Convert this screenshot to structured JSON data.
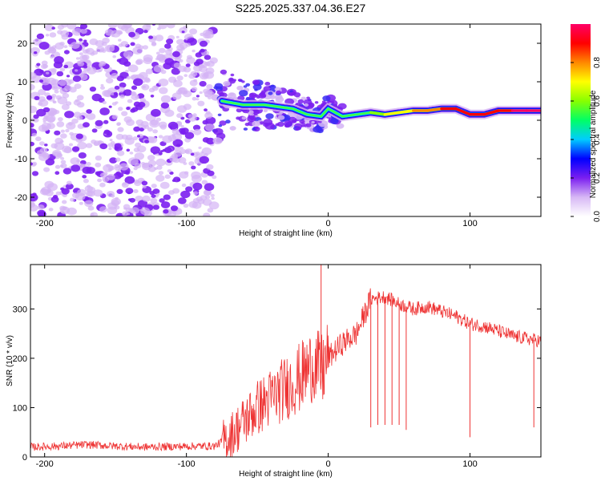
{
  "title": "S225.2025.337.04.36.E27",
  "chart_data": [
    {
      "type": "heatmap",
      "title": "S225.2025.337.04.36.E27",
      "xlabel": "Height of straight line (km)",
      "ylabel": "Frequency (Hz)",
      "xlim": [
        -210,
        150
      ],
      "ylim": [
        -25,
        25
      ],
      "xticks": [
        -200,
        -100,
        0,
        100
      ],
      "yticks": [
        -20,
        -10,
        0,
        10,
        20
      ],
      "xtick_labels": [
        "-200",
        "-100",
        "0",
        "100"
      ],
      "ytick_labels": [
        "-20",
        "-10",
        "0",
        "10",
        "20"
      ],
      "noise_region_x": [
        -210,
        -80
      ],
      "ridge": {
        "x": [
          -75,
          -60,
          -45,
          -35,
          -25,
          -15,
          -5,
          0,
          10,
          20,
          30,
          40,
          50,
          60,
          70,
          80,
          90,
          100,
          110,
          120,
          130,
          140,
          150
        ],
        "freq": [
          5,
          4,
          4,
          3.5,
          3,
          1.5,
          1,
          3,
          1,
          1.5,
          2,
          1.5,
          2,
          2.5,
          2.5,
          3,
          3,
          1.5,
          1.5,
          2.5,
          2.5,
          2.5,
          2.5
        ],
        "amplitude": [
          0.25,
          0.3,
          0.3,
          0.4,
          0.45,
          0.5,
          0.45,
          0.55,
          0.5,
          0.55,
          0.6,
          0.65,
          0.7,
          0.75,
          0.8,
          0.85,
          0.9,
          0.85,
          0.85,
          0.9,
          0.95,
          0.95,
          0.95
        ]
      },
      "colorbar": {
        "label": "Normalized spectral amplitude",
        "range": [
          0,
          1
        ],
        "ticks": [
          0.0,
          0.2,
          0.4,
          0.6,
          0.8
        ],
        "tick_labels": [
          "0.0",
          "0.2",
          "0.4",
          "0.6",
          "0.8"
        ],
        "colors": [
          "#ffffff",
          "#d7b8f5",
          "#7b1ff0",
          "#0000ff",
          "#00ccff",
          "#00ff66",
          "#88ff00",
          "#ffff00",
          "#ff8800",
          "#ff0000",
          "#ff0066"
        ]
      }
    },
    {
      "type": "line",
      "xlabel": "Height of straight line (km)",
      "ylabel": "SNR (10 * v/v)",
      "xlim": [
        -210,
        150
      ],
      "ylim": [
        0,
        390
      ],
      "xticks": [
        -200,
        -100,
        0,
        100
      ],
      "yticks": [
        0,
        100,
        200,
        300
      ],
      "xtick_labels": [
        "-200",
        "-100",
        "0",
        "100"
      ],
      "ytick_labels": [
        "0",
        "100",
        "200",
        "300"
      ],
      "color": "#ee3333",
      "series": [
        {
          "name": "SNR",
          "x": [
            -210,
            -190,
            -170,
            -150,
            -130,
            -110,
            -90,
            -80,
            -70,
            -60,
            -50,
            -40,
            -30,
            -20,
            -10,
            -5,
            0,
            10,
            20,
            30,
            40,
            50,
            60,
            70,
            80,
            90,
            100,
            110,
            120,
            130,
            140,
            150
          ],
          "y": [
            20,
            22,
            25,
            22,
            20,
            21,
            22,
            22,
            40,
            70,
            100,
            120,
            140,
            160,
            190,
            170,
            200,
            230,
            250,
            320,
            325,
            310,
            300,
            305,
            295,
            285,
            270,
            265,
            255,
            245,
            240,
            235
          ]
        }
      ],
      "spikes": [
        {
          "x": -5,
          "y": 390
        },
        {
          "x": 30,
          "y": 60
        },
        {
          "x": 35,
          "y": 65
        },
        {
          "x": 40,
          "y": 65
        },
        {
          "x": 45,
          "y": 65
        },
        {
          "x": 50,
          "y": 65
        },
        {
          "x": 55,
          "y": 55
        },
        {
          "x": 100,
          "y": 40
        },
        {
          "x": 145,
          "y": 60
        }
      ]
    }
  ]
}
